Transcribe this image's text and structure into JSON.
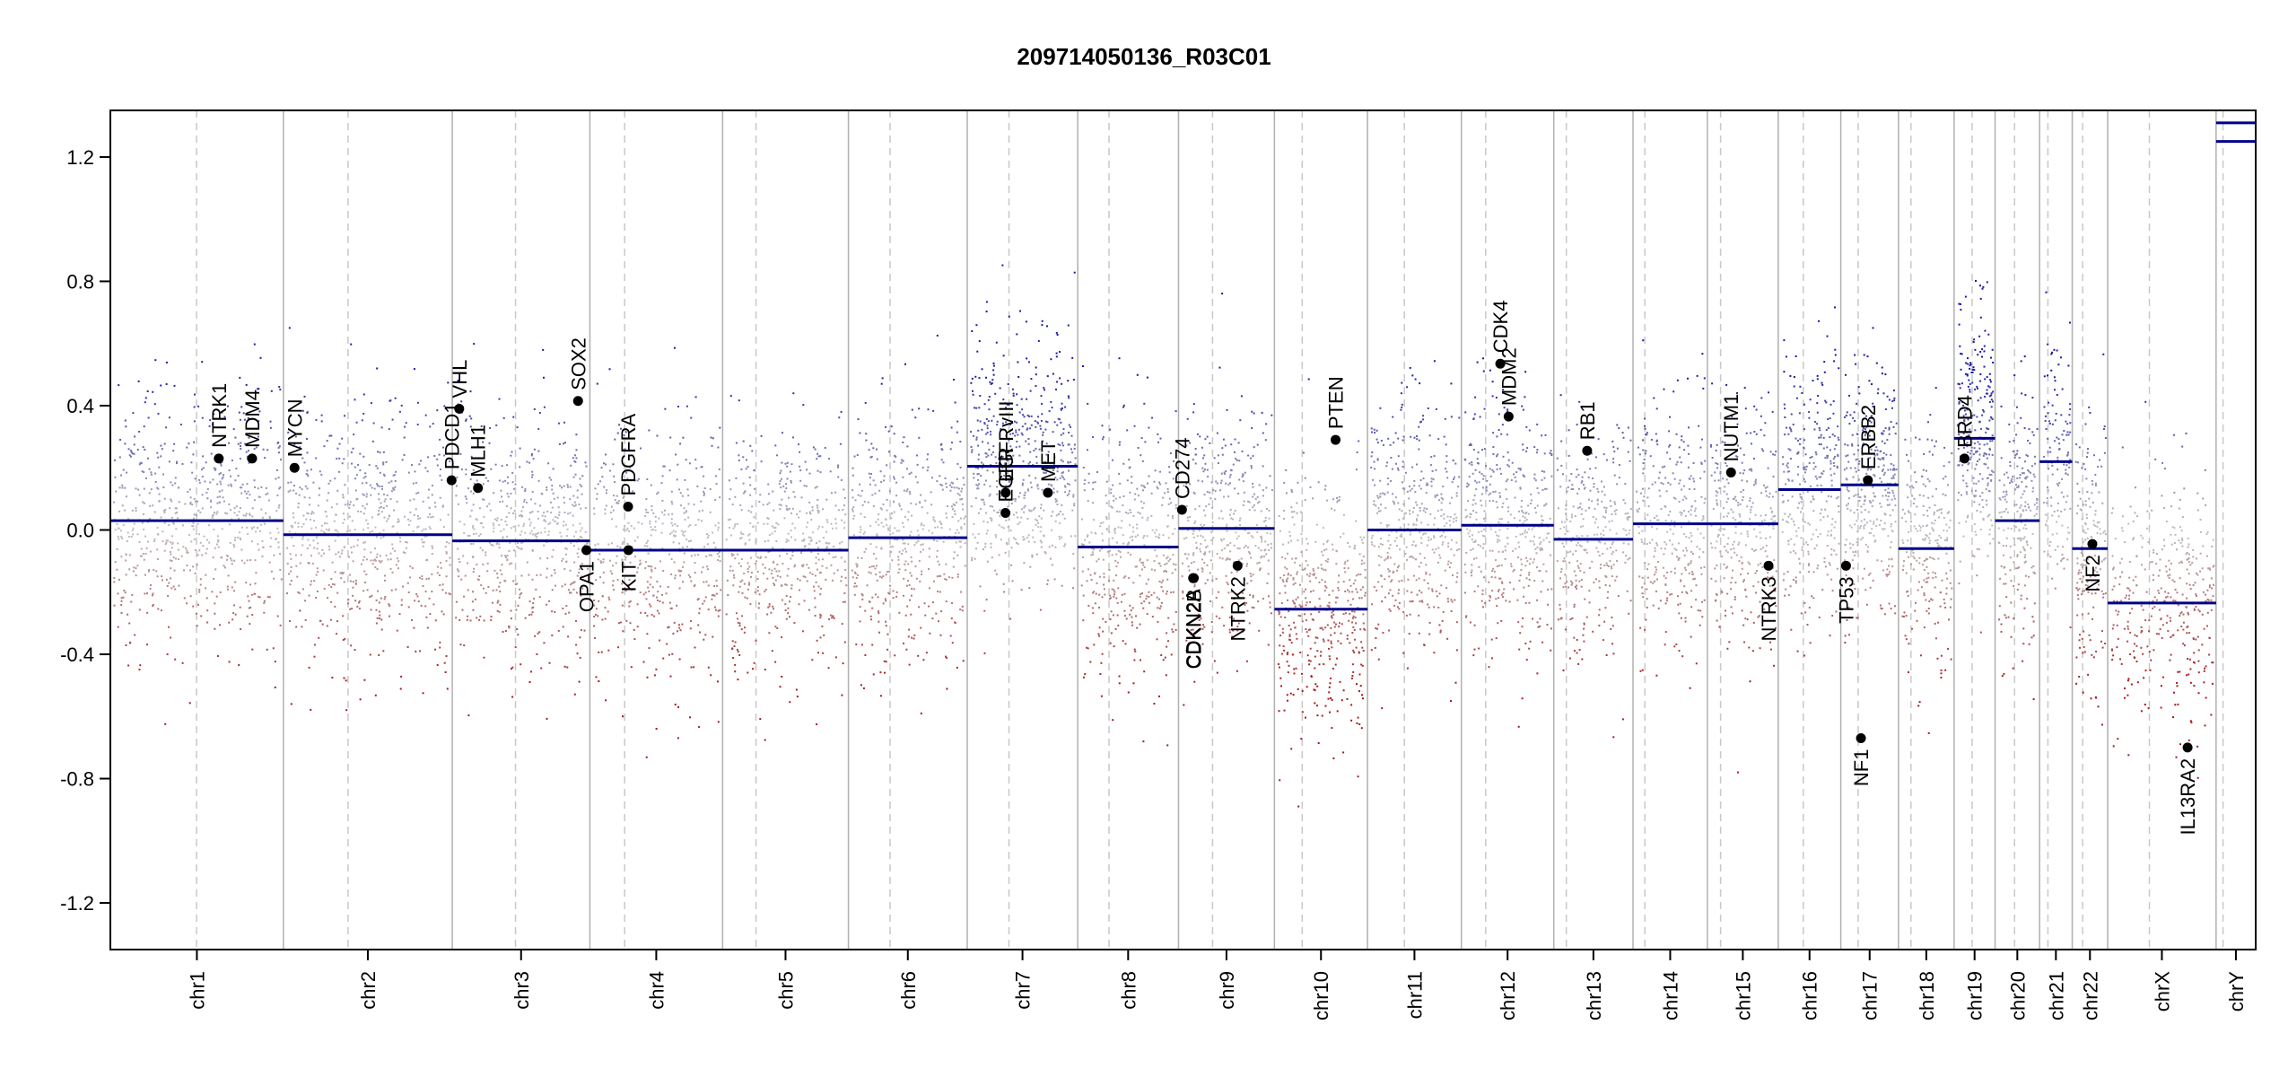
{
  "chart_data": {
    "type": "scatter",
    "title": "209714050136_R03C01",
    "xlabel": "",
    "ylabel": "",
    "ylim": [
      -1.35,
      1.35
    ],
    "yticks": [
      1.2,
      0.8,
      0.4,
      0.0,
      -0.4,
      -0.8,
      -1.2
    ],
    "ytick_labels": [
      "1.2",
      "0.8",
      "0.4",
      "0.0",
      "-0.4",
      "-0.8",
      "-1.2"
    ],
    "chromosomes": [
      {
        "name": "chr1",
        "length": 249,
        "centromere": 124,
        "segments": [
          [
            0,
            1,
            0.03
          ]
        ]
      },
      {
        "name": "chr2",
        "length": 243,
        "centromere": 93,
        "segments": [
          [
            0,
            1,
            -0.015
          ]
        ]
      },
      {
        "name": "chr3",
        "length": 198,
        "centromere": 91,
        "segments": [
          [
            0,
            1,
            -0.035
          ]
        ]
      },
      {
        "name": "chr4",
        "length": 191,
        "centromere": 50,
        "segments": [
          [
            0,
            1,
            -0.065
          ]
        ]
      },
      {
        "name": "chr5",
        "length": 181,
        "centromere": 48,
        "segments": [
          [
            0,
            1,
            -0.065
          ]
        ]
      },
      {
        "name": "chr6",
        "length": 171,
        "centromere": 60,
        "segments": [
          [
            0,
            1,
            -0.025
          ]
        ]
      },
      {
        "name": "chr7",
        "length": 159,
        "centromere": 60,
        "segments": [
          [
            0,
            1,
            0.205
          ]
        ]
      },
      {
        "name": "chr8",
        "length": 145,
        "centromere": 45,
        "segments": [
          [
            0,
            1,
            -0.055
          ]
        ]
      },
      {
        "name": "chr9",
        "length": 138,
        "centromere": 49,
        "segments": [
          [
            0,
            1,
            0.005
          ]
        ]
      },
      {
        "name": "chr10",
        "length": 134,
        "centromere": 40,
        "segments": [
          [
            0,
            1,
            -0.255
          ]
        ]
      },
      {
        "name": "chr11",
        "length": 135,
        "centromere": 53,
        "segments": [
          [
            0,
            1,
            0.0
          ]
        ]
      },
      {
        "name": "chr12",
        "length": 133,
        "centromere": 35,
        "segments": [
          [
            0,
            1,
            0.015
          ]
        ]
      },
      {
        "name": "chr13",
        "length": 114,
        "centromere": 18,
        "segments": [
          [
            0,
            1,
            -0.03
          ]
        ]
      },
      {
        "name": "chr14",
        "length": 107,
        "centromere": 17,
        "segments": [
          [
            0,
            1,
            0.02
          ]
        ]
      },
      {
        "name": "chr15",
        "length": 102,
        "centromere": 19,
        "segments": [
          [
            0,
            1,
            0.02
          ]
        ]
      },
      {
        "name": "chr16",
        "length": 90,
        "centromere": 36,
        "segments": [
          [
            0,
            1,
            0.13
          ]
        ]
      },
      {
        "name": "chr17",
        "length": 83,
        "centromere": 25,
        "segments": [
          [
            0,
            1,
            0.145
          ]
        ]
      },
      {
        "name": "chr18",
        "length": 80,
        "centromere": 18,
        "segments": [
          [
            0,
            1,
            -0.06
          ]
        ]
      },
      {
        "name": "chr19",
        "length": 59,
        "centromere": 26,
        "segments": [
          [
            0,
            1,
            0.295
          ]
        ]
      },
      {
        "name": "chr20",
        "length": 64,
        "centromere": 28,
        "segments": [
          [
            0,
            1,
            0.03
          ]
        ]
      },
      {
        "name": "chr21",
        "length": 47,
        "centromere": 12,
        "segments": [
          [
            0,
            1,
            0.22
          ]
        ]
      },
      {
        "name": "chr22",
        "length": 51,
        "centromere": 15,
        "segments": [
          [
            0,
            1,
            -0.06
          ]
        ]
      },
      {
        "name": "chrX",
        "length": 156,
        "centromere": 60,
        "segments": [
          [
            0,
            1,
            -0.235
          ]
        ]
      },
      {
        "name": "chrY",
        "length": 57,
        "centromere": 10,
        "segments": [
          [
            0,
            1,
            1.31
          ],
          [
            0,
            1,
            1.25
          ]
        ]
      }
    ],
    "genes": [
      {
        "name": "NTRK1",
        "chr": "chr1",
        "pos": 156,
        "value": 0.23
      },
      {
        "name": "MDM4",
        "chr": "chr1",
        "pos": 204,
        "value": 0.23
      },
      {
        "name": "MYCN",
        "chr": "chr2",
        "pos": 16,
        "value": 0.2
      },
      {
        "name": "PDCD1",
        "chr": "chr2",
        "pos": 242,
        "value": 0.16
      },
      {
        "name": "VHL",
        "chr": "chr3",
        "pos": 10,
        "value": 0.39
      },
      {
        "name": "MLH1",
        "chr": "chr3",
        "pos": 37,
        "value": 0.135
      },
      {
        "name": "SOX2",
        "chr": "chr3",
        "pos": 181,
        "value": 0.415
      },
      {
        "name": "OPA1",
        "chr": "chr3",
        "pos": 193,
        "value": -0.065
      },
      {
        "name": "PDGFRA",
        "chr": "chr4",
        "pos": 55,
        "value": 0.075
      },
      {
        "name": "KIT",
        "chr": "chr4",
        "pos": 55.5,
        "value": -0.065
      },
      {
        "name": "EGFR",
        "chr": "chr7",
        "pos": 55,
        "value": 0.055
      },
      {
        "name": "EGFRvIII",
        "chr": "chr7",
        "pos": 55.2,
        "value": 0.12
      },
      {
        "name": "MET",
        "chr": "chr7",
        "pos": 116,
        "value": 0.12
      },
      {
        "name": "CD274",
        "chr": "chr9",
        "pos": 5,
        "value": 0.065
      },
      {
        "name": "CDKN2A",
        "chr": "chr9",
        "pos": 21,
        "value": -0.155
      },
      {
        "name": "CDKN2B",
        "chr": "chr9",
        "pos": 22,
        "value": -0.155
      },
      {
        "name": "NTRK2",
        "chr": "chr9",
        "pos": 85,
        "value": -0.115
      },
      {
        "name": "PTEN",
        "chr": "chr10",
        "pos": 88,
        "value": 0.29
      },
      {
        "name": "CDK4",
        "chr": "chr12",
        "pos": 56,
        "value": 0.535
      },
      {
        "name": "MDM2",
        "chr": "chr12",
        "pos": 68,
        "value": 0.365
      },
      {
        "name": "RB1",
        "chr": "chr13",
        "pos": 48,
        "value": 0.255
      },
      {
        "name": "NUTM1",
        "chr": "chr15",
        "pos": 34,
        "value": 0.185
      },
      {
        "name": "NTRK3",
        "chr": "chr15",
        "pos": 88,
        "value": -0.115
      },
      {
        "name": "TP53",
        "chr": "chr17",
        "pos": 7.5,
        "value": -0.115
      },
      {
        "name": "NF1",
        "chr": "chr17",
        "pos": 29,
        "value": -0.67
      },
      {
        "name": "ERBB2",
        "chr": "chr17",
        "pos": 39,
        "value": 0.16
      },
      {
        "name": "BRD4",
        "chr": "chr19",
        "pos": 15,
        "value": 0.23
      },
      {
        "name": "NF2",
        "chr": "chr22",
        "pos": 29,
        "value": -0.045
      },
      {
        "name": "IL13RA2",
        "chr": "chrX",
        "pos": 115,
        "value": -0.7
      }
    ],
    "point_clouds": [
      {
        "chr": "chr1",
        "center": 0.03,
        "sd": 0.2,
        "count": 650
      },
      {
        "chr": "chr2",
        "center": -0.015,
        "sd": 0.2,
        "count": 620
      },
      {
        "chr": "chr3",
        "center": -0.035,
        "sd": 0.2,
        "count": 520
      },
      {
        "chr": "chr4",
        "center": -0.065,
        "sd": 0.2,
        "count": 460
      },
      {
        "chr": "chr5",
        "center": -0.065,
        "sd": 0.2,
        "count": 470
      },
      {
        "chr": "chr6",
        "center": -0.025,
        "sd": 0.2,
        "count": 470
      },
      {
        "chr": "chr7",
        "center": 0.205,
        "sd": 0.2,
        "count": 520
      },
      {
        "chr": "chr8",
        "center": -0.055,
        "sd": 0.2,
        "count": 400
      },
      {
        "chr": "chr9",
        "center": 0.005,
        "sd": 0.2,
        "count": 380
      },
      {
        "chr": "chr10",
        "center": -0.255,
        "sd": 0.2,
        "count": 420
      },
      {
        "chr": "chr11",
        "center": 0.0,
        "sd": 0.2,
        "count": 420
      },
      {
        "chr": "chr12",
        "center": 0.015,
        "sd": 0.2,
        "count": 420
      },
      {
        "chr": "chr13",
        "center": -0.03,
        "sd": 0.2,
        "count": 300
      },
      {
        "chr": "chr14",
        "center": 0.02,
        "sd": 0.2,
        "count": 300
      },
      {
        "chr": "chr15",
        "center": 0.02,
        "sd": 0.2,
        "count": 290
      },
      {
        "chr": "chr16",
        "center": 0.13,
        "sd": 0.2,
        "count": 290
      },
      {
        "chr": "chr17",
        "center": 0.145,
        "sd": 0.2,
        "count": 320
      },
      {
        "chr": "chr18",
        "center": -0.06,
        "sd": 0.2,
        "count": 220
      },
      {
        "chr": "chr19",
        "center": 0.295,
        "sd": 0.2,
        "count": 260
      },
      {
        "chr": "chr20",
        "center": 0.03,
        "sd": 0.2,
        "count": 220
      },
      {
        "chr": "chr21",
        "center": 0.22,
        "sd": 0.2,
        "count": 130
      },
      {
        "chr": "chr22",
        "center": -0.06,
        "sd": 0.2,
        "count": 170
      },
      {
        "chr": "chrX",
        "center": -0.235,
        "sd": 0.2,
        "count": 360
      },
      {
        "chr": "chrY",
        "center": 0.0,
        "sd": 0.1,
        "count": 0
      }
    ],
    "colors": {
      "gain": "#1a1aa6",
      "loss": "#a61a1a",
      "neutral": "#b8b8b8",
      "segment": "#00008b",
      "gene_point": "#000000",
      "chr_border": "#b0b0b0",
      "centromere": "#c8c8c8"
    }
  }
}
